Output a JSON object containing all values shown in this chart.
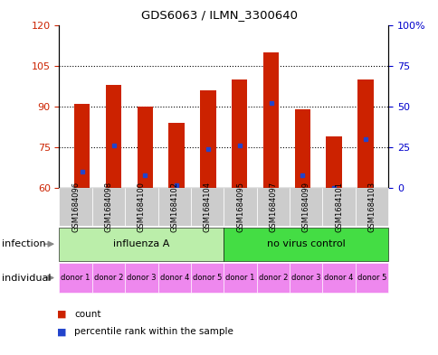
{
  "title": "GDS6063 / ILMN_3300640",
  "samples": [
    "GSM1684096",
    "GSM1684098",
    "GSM1684100",
    "GSM1684102",
    "GSM1684104",
    "GSM1684095",
    "GSM1684097",
    "GSM1684099",
    "GSM1684101",
    "GSM1684103"
  ],
  "counts": [
    91,
    98,
    90,
    84,
    96,
    100,
    110,
    89,
    79,
    100
  ],
  "percentile_ranks": [
    10,
    26,
    8,
    2,
    24,
    26,
    52,
    8,
    0,
    30
  ],
  "ylim_left": [
    60,
    120
  ],
  "ylim_right": [
    0,
    100
  ],
  "yticks_left": [
    60,
    75,
    90,
    105,
    120
  ],
  "yticks_right": [
    0,
    25,
    50,
    75,
    100
  ],
  "yticklabels_right": [
    "0",
    "25",
    "50",
    "75",
    "100%"
  ],
  "bar_color": "#cc2200",
  "dot_color": "#2244cc",
  "infection_groups": [
    {
      "label": "influenza A",
      "start": 0,
      "end": 5,
      "color": "#bbeeaa"
    },
    {
      "label": "no virus control",
      "start": 5,
      "end": 10,
      "color": "#44dd44"
    }
  ],
  "individual_labels": [
    "donor 1",
    "donor 2",
    "donor 3",
    "donor 4",
    "donor 5",
    "donor 1",
    "donor 2",
    "donor 3",
    "donor 4",
    "donor 5"
  ],
  "individual_color": "#ee88ee",
  "sample_bg_color": "#cccccc",
  "legend_count_color": "#cc2200",
  "legend_dot_color": "#2244cc",
  "infection_label": "infection",
  "individual_label": "individual",
  "axis_left_color": "#cc2200",
  "axis_right_color": "#0000cc",
  "grid_color": "#000000",
  "arrow_color": "#888888"
}
